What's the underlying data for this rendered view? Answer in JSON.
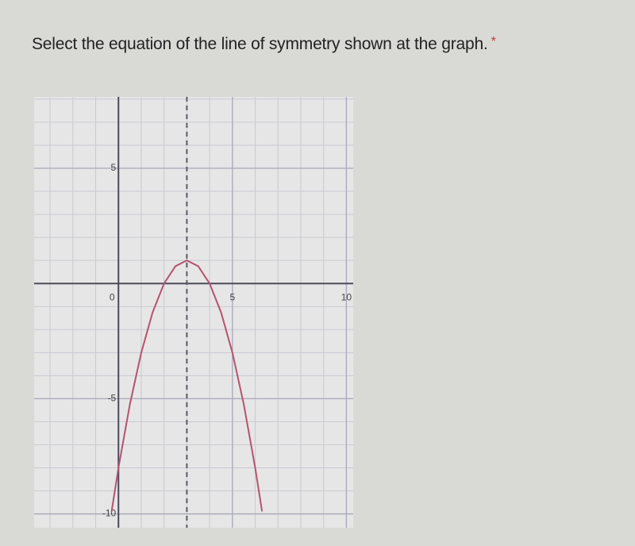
{
  "question": {
    "text": "Select the equation of the line of symmetry shown at the graph.",
    "required_mark": "*"
  },
  "chart_data": {
    "type": "line",
    "x": [
      -0.3,
      0,
      0.5,
      1,
      1.5,
      2,
      2.5,
      3,
      3.5,
      4,
      4.5,
      5,
      5.5,
      6,
      6.3
    ],
    "series": [
      {
        "color": "#b5536e",
        "values": [
          -9.89,
          -8,
          -5.25,
          -3,
          -1.25,
          0,
          0.75,
          1,
          0.75,
          0,
          -1.25,
          -3,
          -5.25,
          -8,
          -9.89
        ]
      }
    ],
    "xlim": [
      -3.7,
      10.3
    ],
    "ylim": [
      -10.6,
      8.1
    ],
    "xticks": [
      0,
      5,
      10
    ],
    "yticks": [
      5,
      -5,
      -10
    ],
    "xgrid": [
      -3,
      -2,
      -1,
      1,
      2,
      3,
      4,
      6,
      7,
      8,
      9
    ],
    "ygrid": [
      -10,
      -9,
      -8,
      -7,
      -6,
      -4,
      -3,
      -2,
      -1,
      1,
      2,
      3,
      4,
      6,
      7,
      8
    ],
    "symmetry_x": 3
  }
}
